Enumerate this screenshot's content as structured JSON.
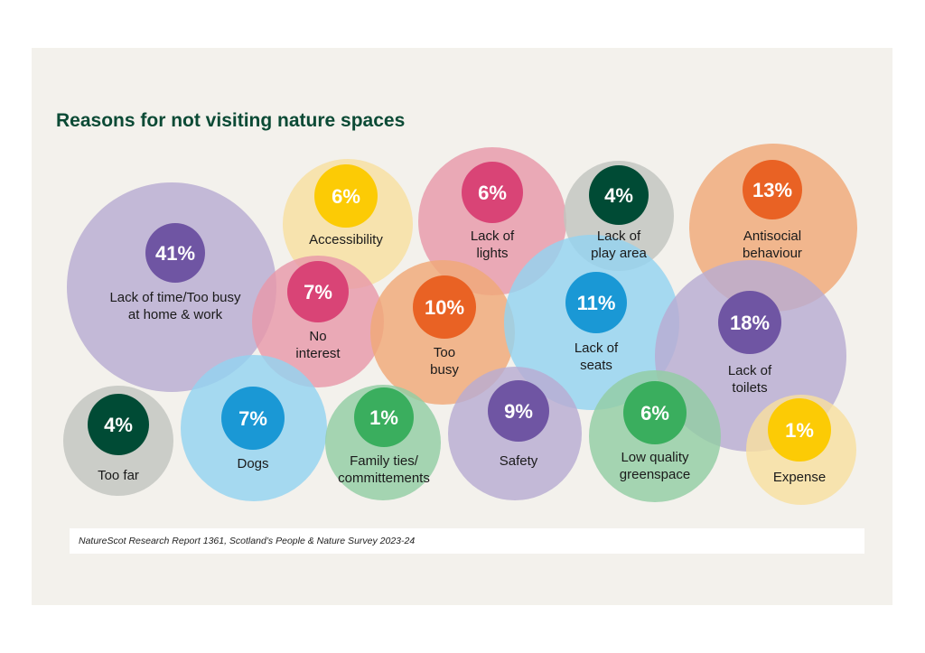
{
  "chart_data": {
    "type": "bubble",
    "title": "Reasons for not visiting nature spaces",
    "unit": "%",
    "categories": [
      "Lack of time/Too busy at home & work",
      "Accessibility",
      "Lack of lights",
      "Lack of play area",
      "Antisocial behaviour",
      "No interest",
      "Too busy",
      "Lack of seats",
      "Lack of toilets",
      "Too far",
      "Dogs",
      "Family ties/ committements",
      "Safety",
      "Low quality greenspace",
      "Expense"
    ],
    "values": [
      41,
      6,
      6,
      4,
      13,
      7,
      10,
      11,
      18,
      4,
      7,
      1,
      9,
      6,
      1
    ],
    "items": [
      {
        "value": "41%",
        "lines": [
          "Lack of time/Too busy",
          "at home & work"
        ],
        "light": "#b8acd2",
        "dark": "#6f55a3"
      },
      {
        "value": "6%",
        "lines": [
          "Accessibility"
        ],
        "light": "#f8dfa0",
        "dark": "#fccb05"
      },
      {
        "value": "6%",
        "lines": [
          "Lack of",
          "lights"
        ],
        "light": "#e898aa",
        "dark": "#d94476"
      },
      {
        "value": "4%",
        "lines": [
          "Lack of",
          "play area"
        ],
        "light": "#c2c5bf",
        "dark": "#004b35"
      },
      {
        "value": "13%",
        "lines": [
          "Antisocial",
          "behaviour"
        ],
        "light": "#f0a878",
        "dark": "#e96224"
      },
      {
        "value": "7%",
        "lines": [
          "No",
          "interest"
        ],
        "light": "#e898aa",
        "dark": "#d94476"
      },
      {
        "value": "10%",
        "lines": [
          "Too",
          "busy"
        ],
        "light": "#f0a878",
        "dark": "#e96224"
      },
      {
        "value": "11%",
        "lines": [
          "Lack of",
          "seats"
        ],
        "light": "#94d3f0",
        "dark": "#1a98d5"
      },
      {
        "value": "18%",
        "lines": [
          "Lack of",
          "toilets"
        ],
        "light": "#b8acd2",
        "dark": "#6f55a3"
      },
      {
        "value": "4%",
        "lines": [
          "Too far"
        ],
        "light": "#c2c5bf",
        "dark": "#004b35"
      },
      {
        "value": "7%",
        "lines": [
          "Dogs"
        ],
        "light": "#94d3f0",
        "dark": "#1a98d5"
      },
      {
        "value": "1%",
        "lines": [
          "Family ties/",
          "committements"
        ],
        "light": "#93cda4",
        "dark": "#3aae5e"
      },
      {
        "value": "9%",
        "lines": [
          "Safety"
        ],
        "light": "#b8acd2",
        "dark": "#6f55a3"
      },
      {
        "value": "6%",
        "lines": [
          "Low quality",
          "greenspace"
        ],
        "light": "#93cda4",
        "dark": "#3aae5e"
      },
      {
        "value": "1%",
        "lines": [
          "Expense"
        ],
        "light": "#f8dfa0",
        "dark": "#fccb05"
      }
    ]
  },
  "source": "NatureScot Research Report 1361, Scotland’s People & Nature Survey 2023-24"
}
